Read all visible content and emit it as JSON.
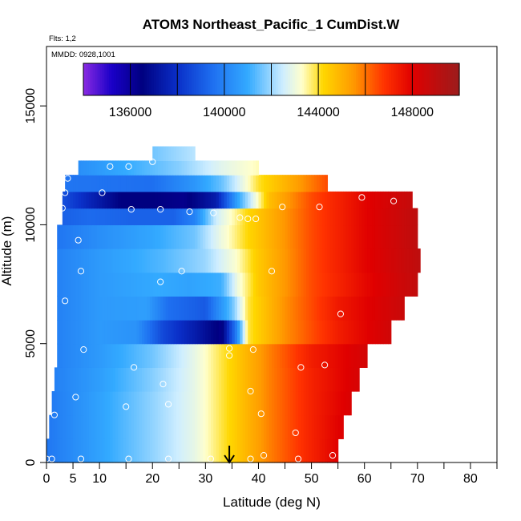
{
  "chart_data": {
    "type": "heatmap",
    "title": "ATOM3 Northeast_Pacific_1 CumDist.W",
    "annotations": [
      "Flts: 1,2",
      "MMDD: 0928,1001"
    ],
    "xlabel": "Latitude (deg N)",
    "ylabel": "Altitude (m)",
    "xlim": [
      0,
      85
    ],
    "ylim": [
      0,
      17500
    ],
    "x_ticks": [
      0,
      5,
      10,
      20,
      30,
      40,
      50,
      60,
      70,
      80
    ],
    "y_ticks": [
      0,
      5000,
      10000,
      15000
    ],
    "colorbar": {
      "min": 134000,
      "max": 150000,
      "ticks": [
        136000,
        140000,
        144000,
        148000
      ],
      "divisions": [
        134000,
        138000,
        142000,
        146000,
        150000
      ],
      "colors": [
        [
          134000,
          "#8a2be2"
        ],
        [
          135200,
          "#1a00c8"
        ],
        [
          136500,
          "#000080"
        ],
        [
          138000,
          "#0a2fc8"
        ],
        [
          139500,
          "#1e6ff0"
        ],
        [
          141000,
          "#33aaff"
        ],
        [
          142500,
          "#cfeeff"
        ],
        [
          143300,
          "#ffffcc"
        ],
        [
          144200,
          "#ffd700"
        ],
        [
          145500,
          "#ff9900"
        ],
        [
          146800,
          "#ff3300"
        ],
        [
          148000,
          "#e00000"
        ],
        [
          150000,
          "#9b1c1c"
        ]
      ]
    },
    "rows": [
      {
        "alt": 0,
        "lat_min": 0,
        "lat_max": 55,
        "profile": [
          [
            0,
            139700
          ],
          [
            10,
            140800
          ],
          [
            20,
            141900
          ],
          [
            28,
            142900
          ],
          [
            35,
            144300
          ],
          [
            42,
            145800
          ],
          [
            50,
            147200
          ],
          [
            55,
            148000
          ]
        ]
      },
      {
        "alt": 1000,
        "lat_min": 0.5,
        "lat_max": 56,
        "profile": [
          [
            0,
            139700
          ],
          [
            10,
            140800
          ],
          [
            20,
            141900
          ],
          [
            28,
            142900
          ],
          [
            35,
            144300
          ],
          [
            42,
            145800
          ],
          [
            50,
            147200
          ],
          [
            56,
            148100
          ]
        ]
      },
      {
        "alt": 2000,
        "lat_min": 1,
        "lat_max": 57.5,
        "profile": [
          [
            0,
            139700
          ],
          [
            10,
            140800
          ],
          [
            20,
            141900
          ],
          [
            28,
            142900
          ],
          [
            35,
            144300
          ],
          [
            42,
            145800
          ],
          [
            50,
            147200
          ],
          [
            57.5,
            148200
          ]
        ]
      },
      {
        "alt": 3000,
        "lat_min": 1.5,
        "lat_max": 59,
        "profile": [
          [
            0,
            139800
          ],
          [
            10,
            140700
          ],
          [
            20,
            141800
          ],
          [
            28,
            142900
          ],
          [
            35,
            144300
          ],
          [
            42,
            145800
          ],
          [
            50,
            147200
          ],
          [
            59,
            148300
          ]
        ]
      },
      {
        "alt": 4000,
        "lat_min": 2,
        "lat_max": 60.5,
        "profile": [
          [
            0,
            139800
          ],
          [
            10,
            140600
          ],
          [
            20,
            141600
          ],
          [
            28,
            142900
          ],
          [
            35,
            144300
          ],
          [
            42,
            145800
          ],
          [
            50,
            147300
          ],
          [
            60.5,
            148400
          ]
        ]
      },
      {
        "alt": 5000,
        "lat_min": 2,
        "lat_max": 65,
        "profile": [
          [
            0,
            139800
          ],
          [
            10,
            140600
          ],
          [
            17,
            140400
          ],
          [
            22,
            138600
          ],
          [
            29,
            137200
          ],
          [
            33,
            136300
          ],
          [
            36,
            140200
          ],
          [
            38,
            143900
          ],
          [
            45,
            145600
          ],
          [
            55,
            147300
          ],
          [
            65,
            148500
          ]
        ]
      },
      {
        "alt": 6000,
        "lat_min": 2,
        "lat_max": 67.5,
        "profile": [
          [
            0,
            139800
          ],
          [
            10,
            140600
          ],
          [
            19,
            140700
          ],
          [
            23,
            139500
          ],
          [
            30,
            139000
          ],
          [
            35,
            141500
          ],
          [
            38,
            143900
          ],
          [
            45,
            145600
          ],
          [
            55,
            147400
          ],
          [
            67.5,
            148700
          ]
        ]
      },
      {
        "alt": 7000,
        "lat_min": 2,
        "lat_max": 70,
        "profile": [
          [
            0,
            139800
          ],
          [
            10,
            140600
          ],
          [
            21,
            141000
          ],
          [
            27,
            140800
          ],
          [
            33,
            141100
          ],
          [
            36,
            143000
          ],
          [
            40,
            144500
          ],
          [
            50,
            146500
          ],
          [
            60,
            147800
          ],
          [
            70,
            148900
          ]
        ]
      },
      {
        "alt": 8000,
        "lat_min": 2,
        "lat_max": 70.5,
        "profile": [
          [
            0,
            139800
          ],
          [
            10,
            140600
          ],
          [
            22,
            141300
          ],
          [
            30,
            142000
          ],
          [
            36,
            143300
          ],
          [
            40,
            144500
          ],
          [
            50,
            146500
          ],
          [
            60,
            147900
          ],
          [
            70.5,
            149000
          ]
        ]
      },
      {
        "alt": 9000,
        "lat_min": 2,
        "lat_max": 70,
        "profile": [
          [
            0,
            139500
          ],
          [
            10,
            140300
          ],
          [
            20,
            140900
          ],
          [
            28,
            141600
          ],
          [
            33,
            143000
          ],
          [
            38,
            144200
          ],
          [
            50,
            146500
          ],
          [
            60,
            147900
          ],
          [
            70,
            149000
          ]
        ]
      },
      {
        "alt": 10000,
        "lat_min": 3,
        "lat_max": 70,
        "profile": [
          [
            0,
            139000
          ],
          [
            8,
            139400
          ],
          [
            16,
            139200
          ],
          [
            24,
            139200
          ],
          [
            28,
            140000
          ],
          [
            32,
            142500
          ],
          [
            38,
            144200
          ],
          [
            50,
            146500
          ],
          [
            60,
            147900
          ],
          [
            70,
            149000
          ]
        ]
      },
      {
        "alt": 10700,
        "lat_min": 3,
        "lat_max": 69,
        "profile": [
          [
            0,
            139400
          ],
          [
            8,
            137700
          ],
          [
            14,
            136500
          ],
          [
            20,
            136500
          ],
          [
            26,
            136300
          ],
          [
            32,
            137400
          ],
          [
            36,
            140800
          ],
          [
            42,
            144700
          ],
          [
            50,
            146500
          ],
          [
            60,
            147900
          ],
          [
            69,
            148800
          ]
        ]
      },
      {
        "alt": 11400,
        "lat_min": 3.5,
        "lat_max": 53,
        "profile": [
          [
            0,
            139700
          ],
          [
            10,
            139600
          ],
          [
            20,
            139500
          ],
          [
            28,
            140500
          ],
          [
            33,
            141500
          ],
          [
            40,
            144000
          ],
          [
            48,
            145500
          ],
          [
            53,
            146500
          ]
        ]
      },
      {
        "alt": 12100,
        "lat_min": 6,
        "lat_max": 40,
        "profile": [
          [
            6,
            140300
          ],
          [
            15,
            141000
          ],
          [
            25,
            141800
          ],
          [
            33,
            142800
          ],
          [
            40,
            143400
          ]
        ]
      },
      {
        "alt": 12700,
        "lat_min": 20,
        "lat_max": 28,
        "profile": [
          [
            20,
            141600
          ],
          [
            28,
            142300
          ]
        ]
      }
    ],
    "points": [
      [
        3,
        10700
      ],
      [
        3.5,
        11350
      ],
      [
        4,
        11950
      ],
      [
        10.5,
        11350
      ],
      [
        12,
        12450
      ],
      [
        15.5,
        12450
      ],
      [
        20,
        12650
      ],
      [
        16,
        10650
      ],
      [
        21.5,
        10650
      ],
      [
        27,
        10550
      ],
      [
        31.5,
        10500
      ],
      [
        6,
        9350
      ],
      [
        6.5,
        8050
      ],
      [
        3.5,
        6800
      ],
      [
        21.5,
        7600
      ],
      [
        25.5,
        8050
      ],
      [
        42.5,
        8050
      ],
      [
        55.5,
        6250
      ],
      [
        0,
        5250
      ],
      [
        7,
        4750
      ],
      [
        16.5,
        4000
      ],
      [
        34.5,
        4800
      ],
      [
        34.5,
        4500
      ],
      [
        39,
        4750
      ],
      [
        48,
        4000
      ],
      [
        52.5,
        4100
      ],
      [
        22,
        3300
      ],
      [
        38.5,
        3000
      ],
      [
        5.5,
        2750
      ],
      [
        23,
        2450
      ],
      [
        15,
        2350
      ],
      [
        40.5,
        2050
      ],
      [
        1.5,
        2000
      ],
      [
        47,
        1250
      ],
      [
        0,
        150
      ],
      [
        1,
        150
      ],
      [
        6.5,
        150
      ],
      [
        15.5,
        150
      ],
      [
        23,
        150
      ],
      [
        31,
        150
      ],
      [
        38.5,
        150
      ],
      [
        41,
        300
      ],
      [
        47.5,
        150
      ],
      [
        54,
        300
      ],
      [
        44.5,
        10750
      ],
      [
        51.5,
        10750
      ],
      [
        59.5,
        11150
      ],
      [
        65.5,
        11000
      ],
      [
        70,
        10850
      ],
      [
        36.5,
        10300
      ],
      [
        38,
        10250
      ],
      [
        39.5,
        10250
      ]
    ],
    "marker_arrow_lat": 34.5
  }
}
